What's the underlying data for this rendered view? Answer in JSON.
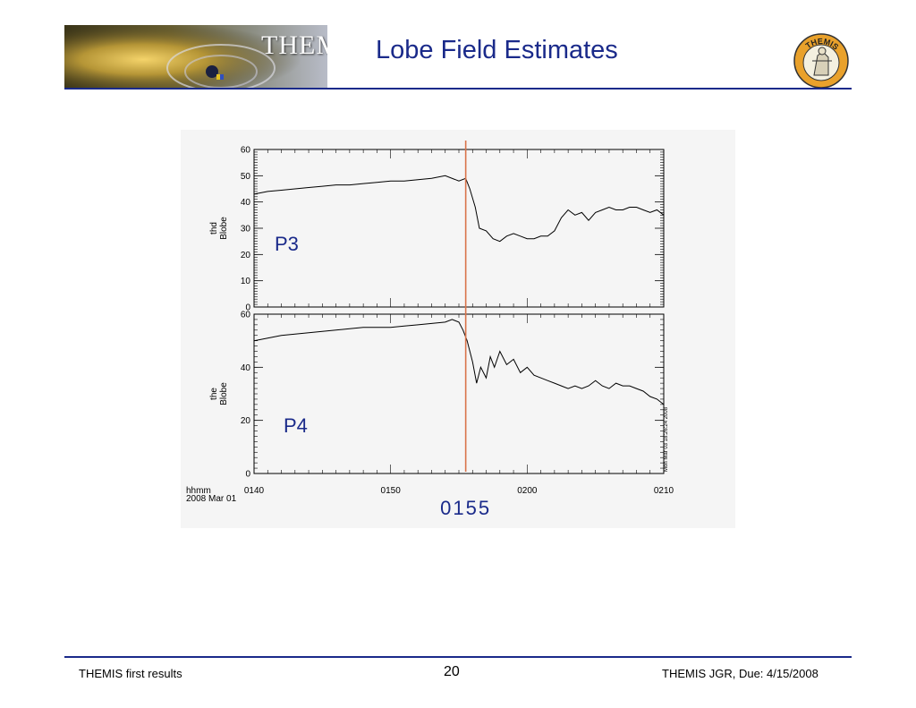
{
  "header": {
    "banner_text": "THEMIS",
    "page_title": "Lobe Field Estimates",
    "logo_text": "THEMIS"
  },
  "footer": {
    "left": "THEMIS first results",
    "page_number": "20",
    "right": "THEMIS JGR, Due: 4/15/2008"
  },
  "colors": {
    "title": "#1a2a8a",
    "rule": "#1a2a8a",
    "event_line": "#d9734a",
    "trace": "#000000"
  },
  "chart_data": [
    {
      "type": "line",
      "panel_tag": "P3",
      "ylabel_lines": [
        "thd",
        "Blobe"
      ],
      "ylim": [
        0,
        60
      ],
      "yticks": [
        0,
        10,
        20,
        30,
        40,
        50,
        60
      ],
      "xlim": [
        0,
        30
      ],
      "series": [
        {
          "x": [
            0,
            1,
            2,
            3,
            4,
            5,
            6,
            7,
            8,
            9,
            10,
            11,
            12,
            13,
            14,
            15,
            15.5,
            15.8,
            16.2,
            16.5,
            17,
            17.5,
            18,
            18.5,
            19,
            19.5,
            20,
            20.5,
            21,
            21.5,
            22,
            22.5,
            23,
            23.5,
            24,
            24.5,
            25,
            25.5,
            26,
            26.5,
            27,
            27.5,
            28,
            28.5,
            29,
            29.5,
            30
          ],
          "y": [
            43,
            44,
            44.5,
            45,
            45.5,
            46,
            46.5,
            46.5,
            47,
            47.5,
            48,
            48,
            48.5,
            49,
            50,
            48,
            49,
            45,
            38,
            30,
            29,
            26,
            25,
            27,
            28,
            27,
            26,
            26,
            27,
            27,
            29,
            34,
            37,
            35,
            36,
            33,
            36,
            37,
            38,
            37,
            37,
            38,
            38,
            37,
            36,
            37,
            35
          ]
        }
      ]
    },
    {
      "type": "line",
      "panel_tag": "P4",
      "ylabel_lines": [
        "the",
        "Blobe"
      ],
      "ylim": [
        0,
        60
      ],
      "yticks": [
        0,
        20,
        40,
        60
      ],
      "xlim": [
        0,
        30
      ],
      "xtick_labels": [
        "0140",
        "0150",
        "0200",
        "0210"
      ],
      "xtick_values": [
        0,
        10,
        20,
        30
      ],
      "x_row_labels": [
        "hhmm",
        "2008 Mar 01"
      ],
      "series": [
        {
          "x": [
            0,
            1,
            2,
            3,
            4,
            5,
            6,
            7,
            8,
            9,
            10,
            11,
            12,
            13,
            14,
            14.5,
            15,
            15.3,
            15.6,
            16,
            16.3,
            16.6,
            17,
            17.3,
            17.6,
            18,
            18.5,
            19,
            19.5,
            20,
            20.5,
            21,
            21.5,
            22,
            22.5,
            23,
            23.5,
            24,
            24.5,
            25,
            25.5,
            26,
            26.5,
            27,
            27.5,
            28,
            28.5,
            29,
            29.5,
            30
          ],
          "y": [
            50,
            51,
            52,
            52.5,
            53,
            53.5,
            54,
            54.5,
            55,
            55,
            55,
            55.5,
            56,
            56.5,
            57,
            58,
            57,
            54,
            50,
            42,
            34,
            40,
            36,
            44,
            40,
            46,
            41,
            43,
            38,
            40,
            37,
            36,
            35,
            34,
            33,
            32,
            33,
            32,
            33,
            35,
            33,
            32,
            34,
            33,
            33,
            32,
            31,
            29,
            28,
            26
          ]
        }
      ]
    }
  ],
  "shared": {
    "event_label": "0155",
    "event_x": 15.5,
    "plot_stamp": "Mon Mar 03 18:26:24 2008"
  }
}
